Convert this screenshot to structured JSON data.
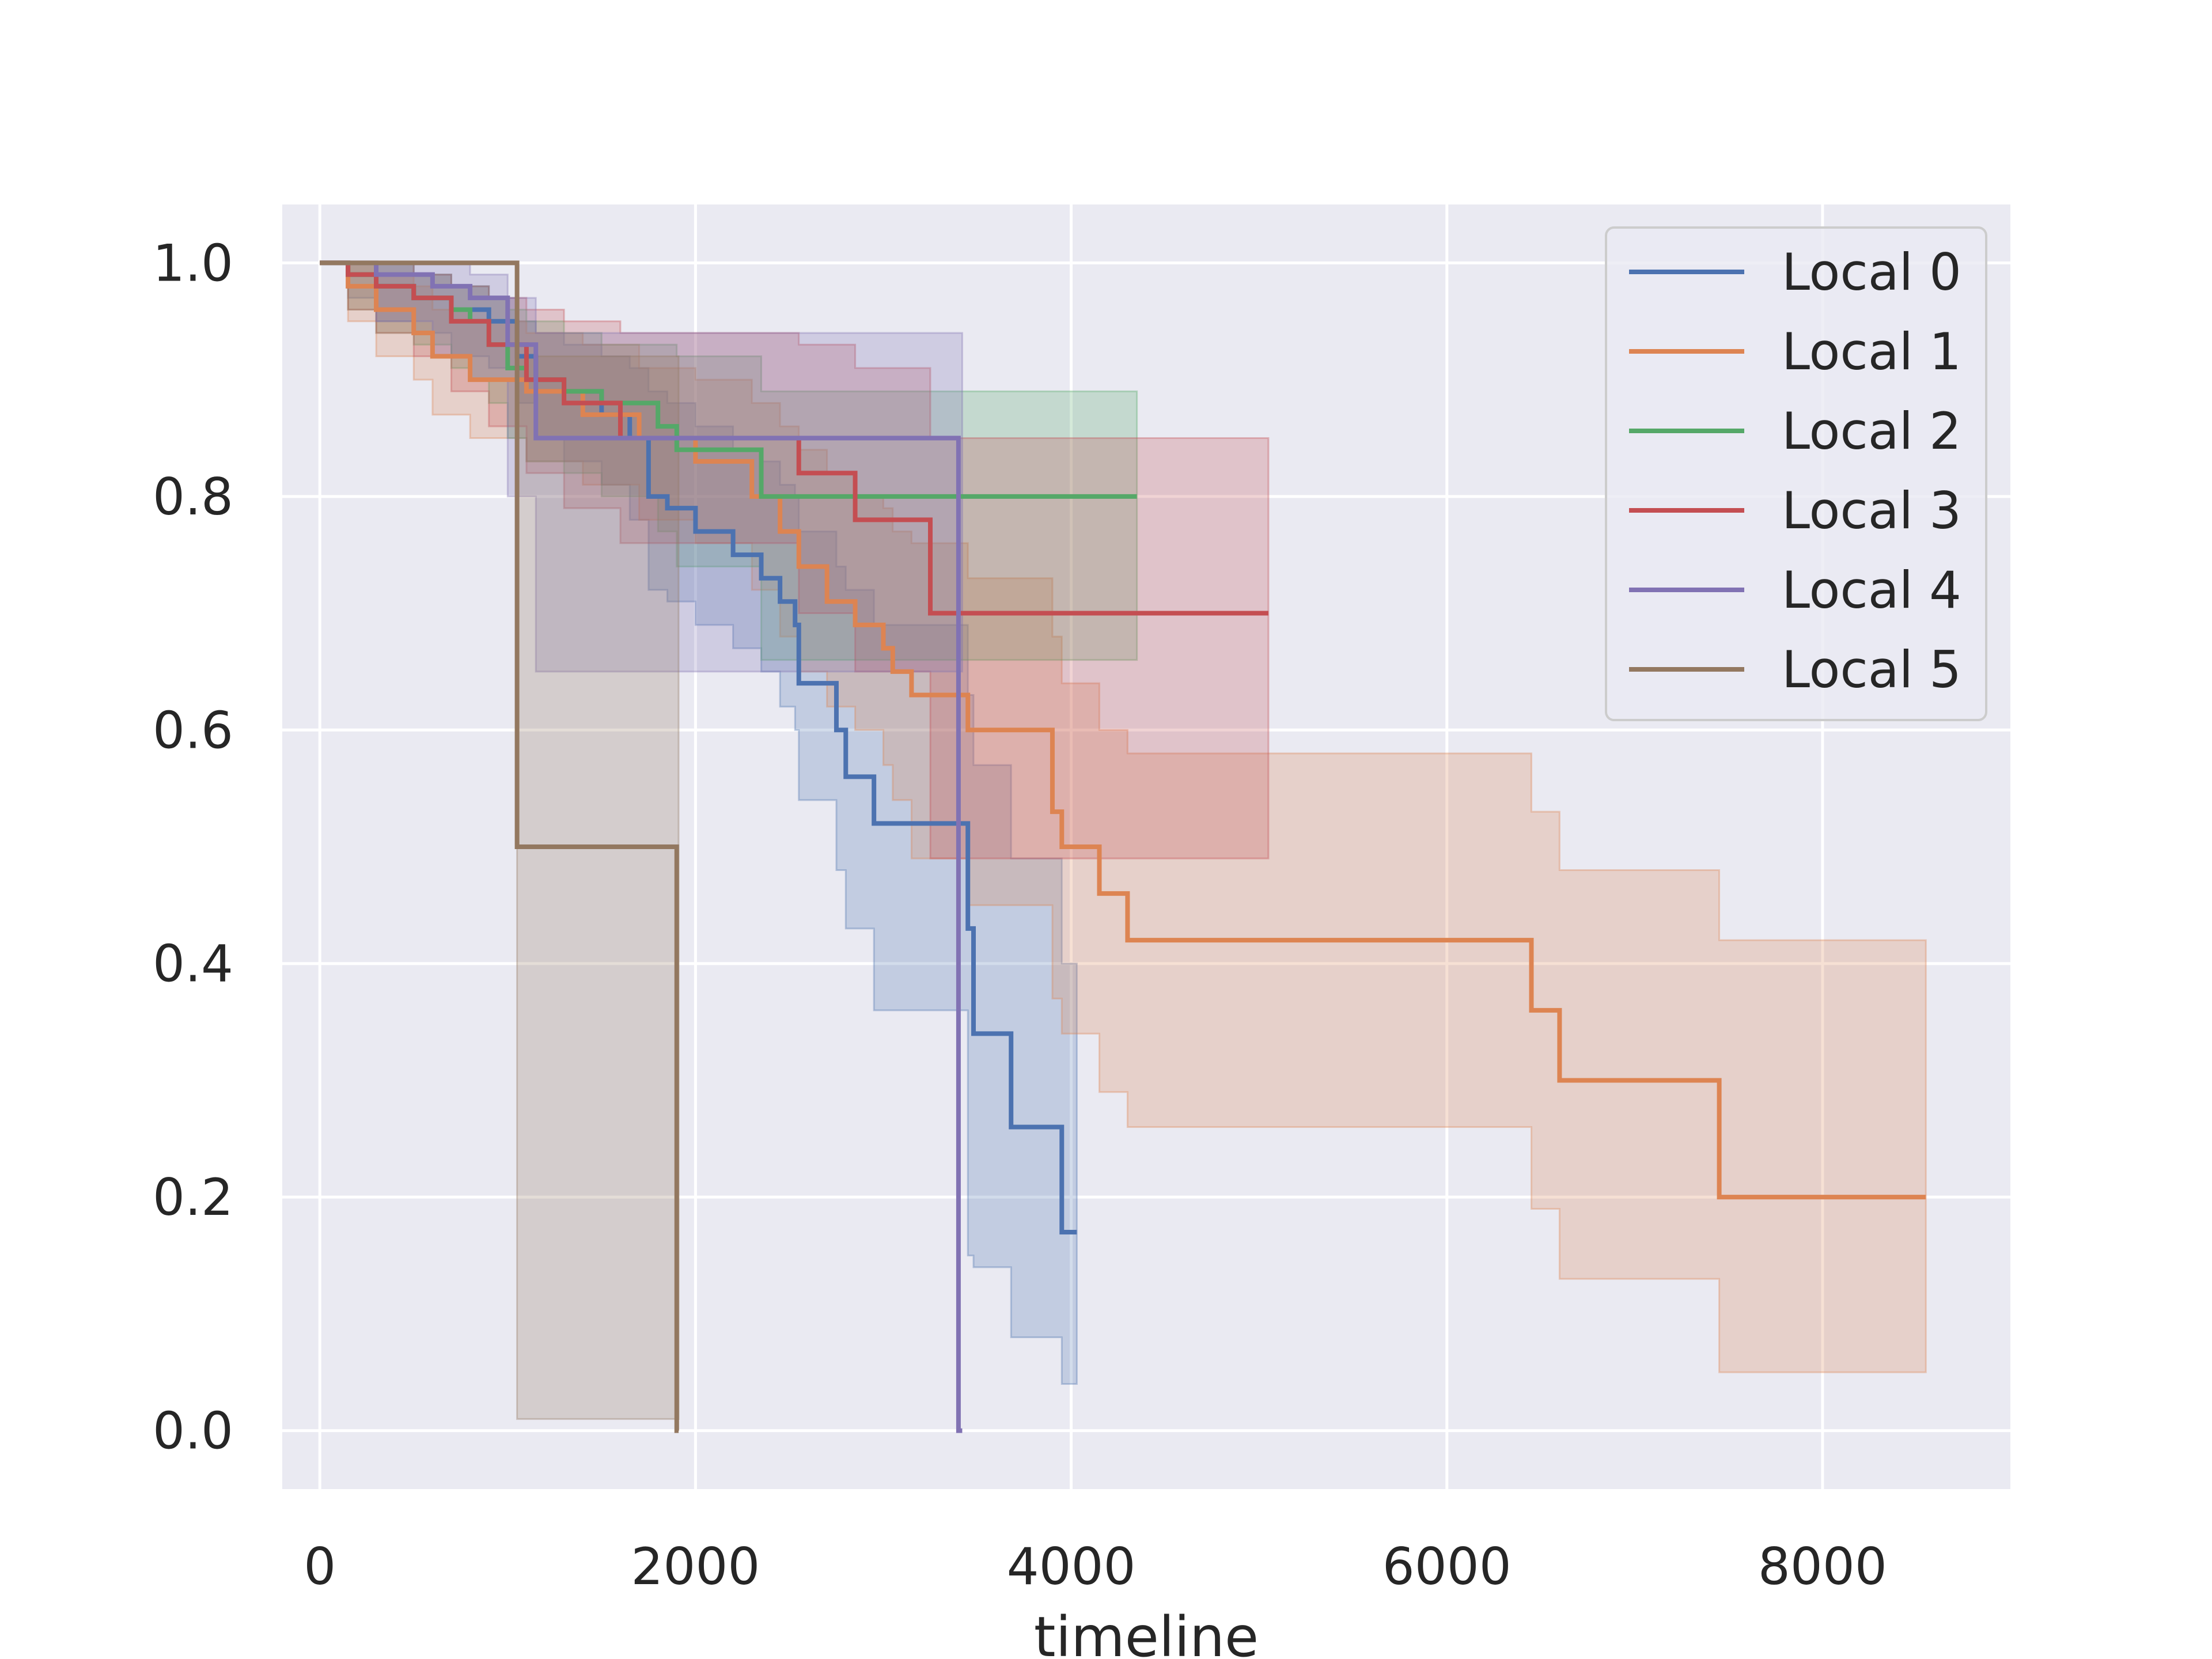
{
  "chart_data": {
    "type": "line",
    "title": "",
    "xlabel": "timeline",
    "ylabel": "",
    "xlim": [
      -200,
      9000
    ],
    "ylim": [
      -0.05,
      1.05
    ],
    "xticks": [
      0,
      2000,
      4000,
      6000,
      8000
    ],
    "xtick_labels": [
      "0",
      "2000",
      "4000",
      "6000",
      "8000"
    ],
    "yticks": [
      0.0,
      0.2,
      0.4,
      0.6,
      0.8,
      1.0
    ],
    "ytick_labels": [
      "0.0",
      "0.2",
      "0.4",
      "0.6",
      "0.8",
      "1.0"
    ],
    "grid": true,
    "legend_position": "top-right",
    "step": "post",
    "series": [
      {
        "name": "Local 0",
        "color": "#4c72b0",
        "x": [
          0,
          150,
          300,
          500,
          700,
          900,
          1050,
          1150,
          1300,
          1500,
          1650,
          1750,
          1850,
          2000,
          2200,
          2350,
          2450,
          2530,
          2550,
          2750,
          2800,
          2950,
          3450,
          3480,
          3680,
          3950,
          4030
        ],
        "y": [
          1.0,
          0.99,
          0.98,
          0.97,
          0.96,
          0.95,
          0.92,
          0.9,
          0.89,
          0.87,
          0.85,
          0.8,
          0.79,
          0.77,
          0.75,
          0.73,
          0.71,
          0.69,
          0.64,
          0.6,
          0.56,
          0.52,
          0.43,
          0.34,
          0.26,
          0.17,
          0.17
        ],
        "ci_upper": [
          1.0,
          1.0,
          1.0,
          0.99,
          0.98,
          0.97,
          0.95,
          0.94,
          0.93,
          0.92,
          0.91,
          0.89,
          0.88,
          0.86,
          0.84,
          0.83,
          0.81,
          0.8,
          0.77,
          0.74,
          0.72,
          0.69,
          0.63,
          0.57,
          0.49,
          0.4,
          0.4
        ],
        "ci_lower": [
          1.0,
          0.97,
          0.95,
          0.94,
          0.92,
          0.91,
          0.88,
          0.85,
          0.83,
          0.81,
          0.78,
          0.72,
          0.71,
          0.69,
          0.67,
          0.65,
          0.62,
          0.6,
          0.54,
          0.48,
          0.43,
          0.36,
          0.15,
          0.14,
          0.08,
          0.04,
          0.04
        ]
      },
      {
        "name": "Local 1",
        "color": "#dd8452",
        "x": [
          0,
          150,
          300,
          500,
          600,
          800,
          1100,
          1400,
          1700,
          2000,
          2300,
          2450,
          2550,
          2700,
          2850,
          3000,
          3050,
          3150,
          3450,
          3900,
          3950,
          4150,
          4300,
          6450,
          6600,
          7450,
          8550
        ],
        "y": [
          1.0,
          0.98,
          0.96,
          0.94,
          0.92,
          0.9,
          0.89,
          0.87,
          0.85,
          0.83,
          0.8,
          0.77,
          0.74,
          0.71,
          0.69,
          0.67,
          0.65,
          0.63,
          0.6,
          0.53,
          0.5,
          0.46,
          0.42,
          0.36,
          0.3,
          0.2,
          0.2
        ],
        "ci_upper": [
          1.0,
          1.0,
          0.99,
          0.98,
          0.96,
          0.95,
          0.94,
          0.93,
          0.91,
          0.9,
          0.88,
          0.86,
          0.84,
          0.82,
          0.8,
          0.79,
          0.77,
          0.76,
          0.73,
          0.68,
          0.64,
          0.6,
          0.58,
          0.53,
          0.48,
          0.42,
          0.42
        ],
        "ci_lower": [
          1.0,
          0.95,
          0.92,
          0.9,
          0.87,
          0.85,
          0.83,
          0.81,
          0.78,
          0.76,
          0.72,
          0.68,
          0.65,
          0.62,
          0.6,
          0.57,
          0.54,
          0.49,
          0.45,
          0.37,
          0.34,
          0.29,
          0.26,
          0.19,
          0.13,
          0.05,
          0.05
        ]
      },
      {
        "name": "Local 2",
        "color": "#55a868",
        "x": [
          0,
          150,
          300,
          500,
          700,
          800,
          900,
          1000,
          1100,
          1300,
          1500,
          1800,
          1900,
          2350,
          4350
        ],
        "y": [
          1.0,
          0.99,
          0.98,
          0.97,
          0.96,
          0.95,
          0.93,
          0.91,
          0.9,
          0.89,
          0.88,
          0.86,
          0.84,
          0.8,
          0.8
        ],
        "ci_upper": [
          1.0,
          1.0,
          1.0,
          0.99,
          0.98,
          0.98,
          0.97,
          0.96,
          0.95,
          0.94,
          0.93,
          0.93,
          0.92,
          0.89,
          0.89
        ],
        "ci_lower": [
          1.0,
          0.96,
          0.94,
          0.93,
          0.91,
          0.9,
          0.88,
          0.85,
          0.83,
          0.82,
          0.8,
          0.77,
          0.74,
          0.66,
          0.66
        ]
      },
      {
        "name": "Local 3",
        "color": "#c44e52",
        "x": [
          0,
          150,
          300,
          500,
          700,
          900,
          1100,
          1300,
          1600,
          2550,
          2850,
          3250,
          5050
        ],
        "y": [
          1.0,
          0.99,
          0.98,
          0.97,
          0.95,
          0.93,
          0.9,
          0.88,
          0.85,
          0.82,
          0.78,
          0.7,
          0.7
        ],
        "ci_upper": [
          1.0,
          1.0,
          1.0,
          0.99,
          0.98,
          0.97,
          0.96,
          0.95,
          0.94,
          0.93,
          0.91,
          0.85,
          0.85
        ],
        "ci_lower": [
          1.0,
          0.96,
          0.94,
          0.92,
          0.89,
          0.86,
          0.82,
          0.79,
          0.76,
          0.7,
          0.65,
          0.49,
          0.49
        ]
      },
      {
        "name": "Local 4",
        "color": "#8172b3",
        "x": [
          0,
          300,
          600,
          800,
          1000,
          1150,
          3400,
          3420
        ],
        "y": [
          1.0,
          0.99,
          0.98,
          0.97,
          0.93,
          0.85,
          0.0,
          0.0
        ],
        "ci_upper": [
          1.0,
          1.0,
          1.0,
          0.99,
          0.97,
          0.94,
          0.94,
          0.94
        ],
        "ci_lower": [
          1.0,
          0.95,
          0.92,
          0.9,
          0.8,
          0.65,
          0.65,
          0.65
        ]
      },
      {
        "name": "Local 5",
        "color": "#937860",
        "x": [
          0,
          1050,
          1900,
          1910
        ],
        "y": [
          1.0,
          0.5,
          0.0,
          0.0
        ],
        "ci_upper": [
          1.0,
          0.92,
          0.92,
          0.92
        ],
        "ci_lower": [
          1.0,
          0.01,
          0.01,
          0.01
        ]
      }
    ]
  }
}
